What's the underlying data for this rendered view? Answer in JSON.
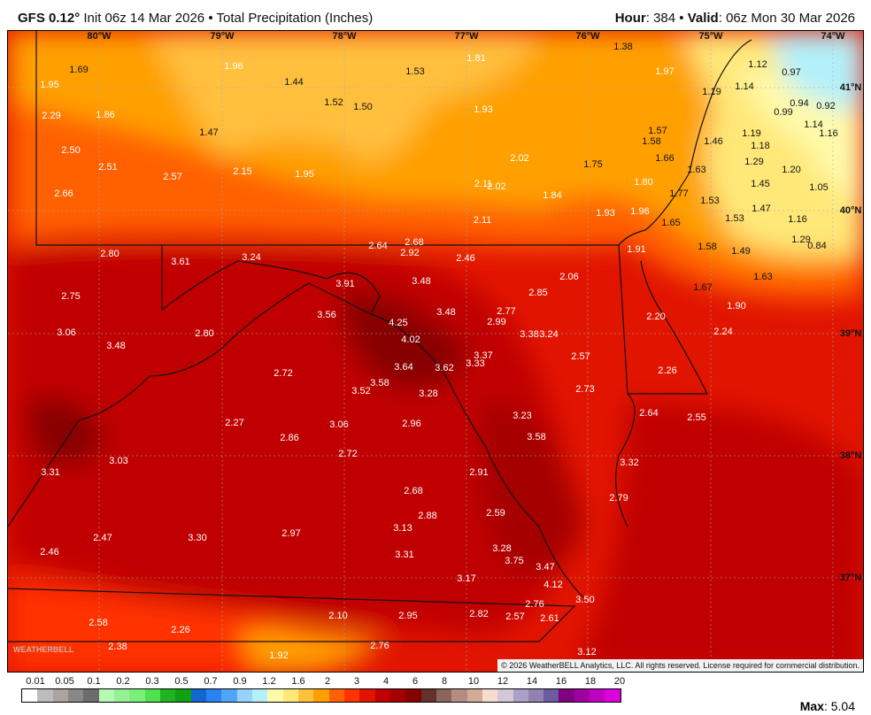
{
  "header": {
    "model": "GFS 0.12°",
    "init": "Init 06z 14 Mar 2026",
    "separator": "•",
    "product": "Total Precipitation (Inches)",
    "hour_label": "Hour",
    "hour": "384",
    "valid_label": "Valid",
    "valid": "06z Mon 30 Mar 2026"
  },
  "map": {
    "longitudes": [
      "80°W",
      "79°W",
      "78°W",
      "77°W",
      "76°W",
      "75°W",
      "74°W"
    ],
    "latitudes": [
      "41°N",
      "40°N",
      "39°N",
      "38°N",
      "37°N"
    ],
    "values": [
      "1.69",
      "1.95",
      "2.29",
      "1.86",
      "2.50",
      "2.51",
      "2.66",
      "2.57",
      "1.96",
      "1.44",
      "1.47",
      "2.15",
      "1.95",
      "1.52",
      "1.50",
      "1.53",
      "1.81",
      "1.93",
      "2.02",
      "2.11",
      "2.02",
      "1.84",
      "2.11",
      "1.75",
      "1.38",
      "1.97",
      "1.57",
      "1.58",
      "1.66",
      "1.80",
      "1.77",
      "1.93",
      "1.96",
      "1.65",
      "1.46",
      "1.63",
      "1.53",
      "1.53",
      "1.19",
      "1.14",
      "1.12",
      "0.97",
      "0.94",
      "0.99",
      "0.92",
      "1.19",
      "1.18",
      "1.29",
      "1.20",
      "1.45",
      "1.47",
      "1.16",
      "1.05",
      "1.29",
      "0.84",
      "1.14",
      "1.16",
      "1.58",
      "1.49",
      "1.63",
      "1.67",
      "1.90",
      "1.91",
      "2.06",
      "2.20",
      "2.24",
      "2.26",
      "2.64",
      "2.55",
      "2.85",
      "2.77",
      "2.99",
      "3.38",
      "3.24",
      "2.57",
      "2.73",
      "2.80",
      "3.61",
      "3.24",
      "2.64",
      "2.68",
      "2.92",
      "2.46",
      "2.75",
      "3.91",
      "3.48",
      "3.56",
      "3.48",
      "4.25",
      "4.02",
      "3.06",
      "3.48",
      "2.80",
      "3.37",
      "3.64",
      "3.62",
      "3.33",
      "3.58",
      "3.52",
      "3.28",
      "2.72",
      "3.23",
      "3.58",
      "2.27",
      "2.86",
      "3.06",
      "2.96",
      "2.72",
      "3.03",
      "3.31",
      "2.91",
      "3.32",
      "2.68",
      "2.88",
      "2.59",
      "2.79",
      "3.13",
      "2.47",
      "3.30",
      "2.97",
      "2.46",
      "3.31",
      "3.28",
      "3.75",
      "3.47",
      "3.17",
      "4.12",
      "2.76",
      "3.50",
      "2.10",
      "2.95",
      "2.82",
      "2.57",
      "2.61",
      "2.58",
      "2.26",
      "2.38",
      "2.76",
      "1.92",
      "3.12"
    ],
    "copyright": "© 2026 WeatherBELL Analytics, LLC. All rights reserved. License required for commercial distribution.",
    "logo": "WeatherBELL"
  },
  "legend": {
    "ticks": [
      "0.01",
      "0.05",
      "0.1",
      "0.2",
      "0.3",
      "0.5",
      "0.7",
      "0.9",
      "1.2",
      "1.6",
      "2",
      "3",
      "4",
      "6",
      "8",
      "10",
      "12",
      "14",
      "16",
      "18",
      "20"
    ],
    "colors": [
      "#ffffff",
      "#bcbcbc",
      "#aaa39f",
      "#888888",
      "#6c6c6c",
      "#b4fab4",
      "#96f096",
      "#78f078",
      "#50e050",
      "#20b420",
      "#10a010",
      "#1464d2",
      "#2882f0",
      "#50a5f5",
      "#96d2fa",
      "#b4f0fa",
      "#fffaaa",
      "#ffe878",
      "#ffc03c",
      "#ffa000",
      "#ff6000",
      "#ff3200",
      "#e11400",
      "#c00000",
      "#a50000",
      "#870000",
      "#643228",
      "#8c645a",
      "#b48c82",
      "#d2aa96",
      "#f5dccc",
      "#d2c8d8",
      "#aaa0c8",
      "#9182b4",
      "#6e5aa0",
      "#800080",
      "#a000a0",
      "#c000c0",
      "#dc00dc"
    ],
    "max_label": "Max",
    "max_value": "5.04"
  }
}
